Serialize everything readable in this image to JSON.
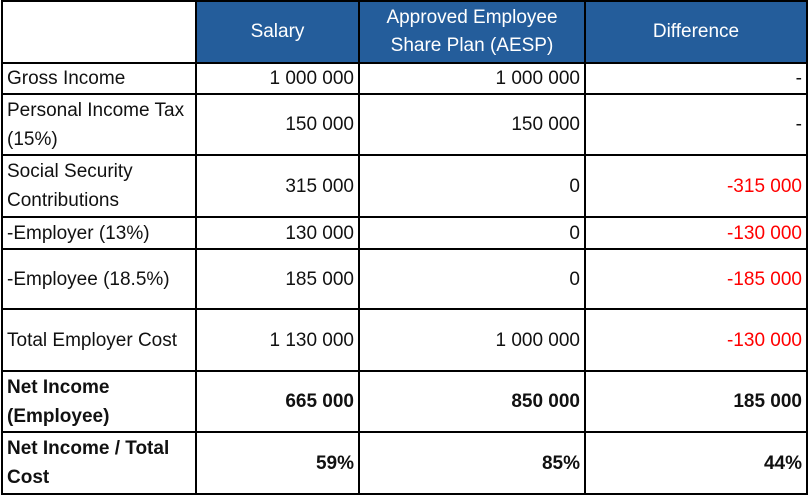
{
  "header": {
    "col0": "",
    "col1": "Salary",
    "col2": "Approved Employee Share Plan (AESP)",
    "col3": "Difference"
  },
  "rows": [
    {
      "label": "Gross Income",
      "salary": "1 000 000",
      "aesp": "1 000 000",
      "difference": "-"
    },
    {
      "label": "Personal Income Tax (15%)",
      "salary": "150 000",
      "aesp": "150 000",
      "difference": "-"
    },
    {
      "label": "Social Security Contributions",
      "salary": "315 000",
      "aesp": "0",
      "difference": "-315 000"
    },
    {
      "label": "-Employer (13%)",
      "salary": "130 000",
      "aesp": "0",
      "difference": "-130 000"
    },
    {
      "label": "-Employee (18.5%)",
      "salary": "185 000",
      "aesp": "0",
      "difference": "-185 000"
    },
    {
      "label": "Total Employer Cost",
      "salary": "1 130 000",
      "aesp": "1 000 000",
      "difference": "-130 000"
    },
    {
      "label": "Net Income (Employee)",
      "salary": "665 000",
      "aesp": "850 000",
      "difference": "185 000"
    },
    {
      "label": "Net Income / Total Cost",
      "salary": "59%",
      "aesp": "85%",
      "difference": "44%"
    }
  ],
  "colors": {
    "header_bg": "#245D9B",
    "negative": "#FF0000"
  }
}
